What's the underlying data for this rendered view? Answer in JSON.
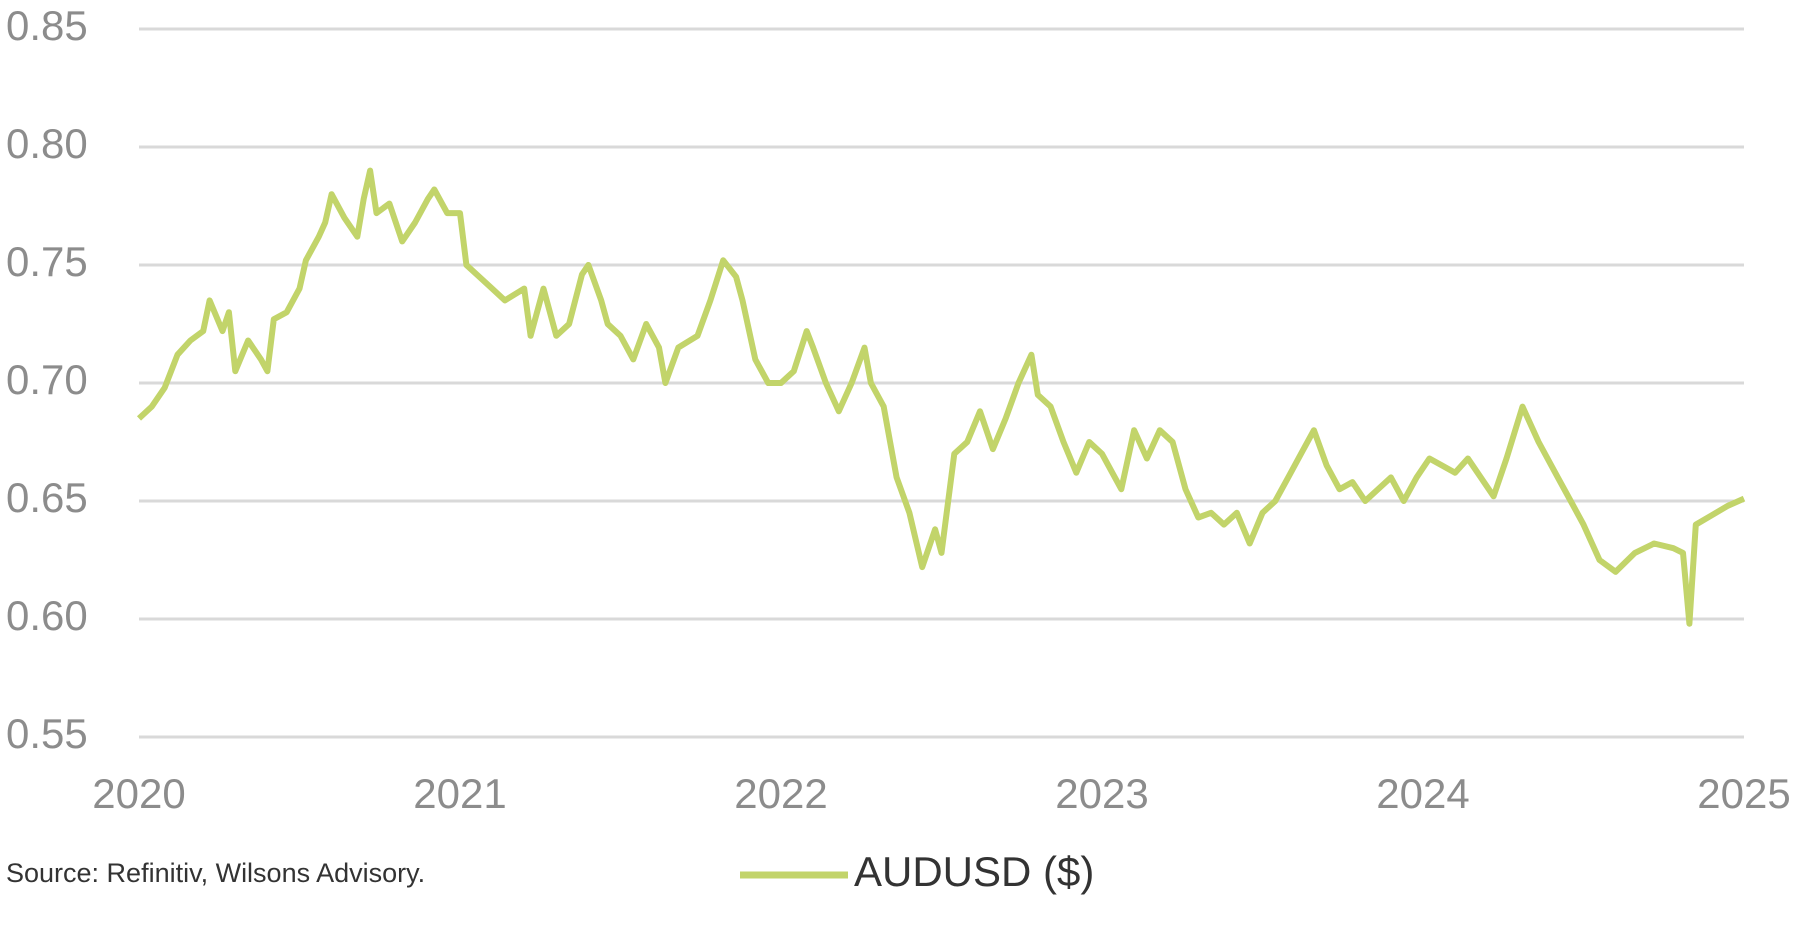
{
  "chart_data": {
    "type": "line",
    "source": "Source: Refinitiv, Wilsons Advisory.",
    "xlim": [
      2020,
      2025
    ],
    "xticks": [
      2020,
      2021,
      2022,
      2023,
      2024,
      2025
    ],
    "ylim": [
      0.55,
      0.85
    ],
    "yticks": [
      0.85,
      {
        "value": 0.8,
        "label": "0.80"
      },
      0.75,
      {
        "value": 0.7,
        "label": "0.70"
      },
      0.65,
      {
        "value": 0.6,
        "label": "0.60"
      },
      0.55
    ],
    "grid": true,
    "x": [
      2020.0,
      2020.04,
      2020.08,
      2020.12,
      2020.16,
      2020.2,
      2020.22,
      2020.26,
      2020.28,
      2020.3,
      2020.34,
      2020.38,
      2020.4,
      2020.42,
      2020.46,
      2020.5,
      2020.52,
      2020.56,
      2020.58,
      2020.6,
      2020.64,
      2020.68,
      2020.7,
      2020.72,
      2020.74,
      2020.78,
      2020.82,
      2020.86,
      2020.9,
      2020.92,
      2020.96,
      2021.0,
      2021.02,
      2021.06,
      2021.1,
      2021.14,
      2021.2,
      2021.22,
      2021.26,
      2021.3,
      2021.34,
      2021.38,
      2021.4,
      2021.44,
      2021.46,
      2021.5,
      2021.54,
      2021.58,
      2021.62,
      2021.64,
      2021.68,
      2021.74,
      2021.78,
      2021.82,
      2021.86,
      2021.88,
      2021.92,
      2021.96,
      2022.0,
      2022.04,
      2022.08,
      2022.1,
      2022.14,
      2022.18,
      2022.22,
      2022.26,
      2022.28,
      2022.32,
      2022.34,
      2022.36,
      2022.4,
      2022.44,
      2022.48,
      2022.5,
      2022.54,
      2022.58,
      2022.62,
      2022.66,
      2022.7,
      2022.74,
      2022.78,
      2022.8,
      2022.84,
      2022.88,
      2022.92,
      2022.96,
      2023.0,
      2023.02,
      2023.06,
      2023.1,
      2023.14,
      2023.18,
      2023.22,
      2023.26,
      2023.3,
      2023.34,
      2023.38,
      2023.42,
      2023.46,
      2023.5,
      2023.54,
      2023.58,
      2023.62,
      2023.66,
      2023.7,
      2023.74,
      2023.78,
      2023.82,
      2023.86,
      2023.9,
      2023.94,
      2023.98,
      2024.02,
      2024.06,
      2024.1,
      2024.14,
      2024.18,
      2024.22,
      2024.26,
      2024.31,
      2024.36,
      2024.42,
      2024.46,
      2024.5,
      2024.55,
      2024.6,
      2024.66,
      2024.72,
      2024.78,
      2024.81,
      2024.83,
      2024.85,
      2024.9,
      2024.95,
      2025.0
    ],
    "series": [
      {
        "name": "AUDUSD ($)",
        "color": "#c2d46a",
        "values": [
          0.685,
          0.69,
          0.698,
          0.712,
          0.718,
          0.722,
          0.735,
          0.722,
          0.73,
          0.705,
          0.718,
          0.71,
          0.705,
          0.727,
          0.73,
          0.74,
          0.752,
          0.762,
          0.768,
          0.78,
          0.77,
          0.762,
          0.778,
          0.79,
          0.772,
          0.776,
          0.76,
          0.768,
          0.778,
          0.782,
          0.772,
          0.772,
          0.75,
          0.745,
          0.74,
          0.735,
          0.74,
          0.72,
          0.74,
          0.72,
          0.725,
          0.746,
          0.75,
          0.735,
          0.725,
          0.72,
          0.71,
          0.725,
          0.715,
          0.7,
          0.715,
          0.72,
          0.735,
          0.752,
          0.745,
          0.735,
          0.71,
          0.7,
          0.7,
          0.705,
          0.722,
          0.715,
          0.7,
          0.688,
          0.7,
          0.715,
          0.7,
          0.69,
          0.675,
          0.66,
          0.645,
          0.622,
          0.638,
          0.628,
          0.67,
          0.675,
          0.688,
          0.672,
          0.685,
          0.7,
          0.712,
          0.695,
          0.69,
          0.675,
          0.662,
          0.675,
          0.67,
          0.665,
          0.655,
          0.68,
          0.668,
          0.68,
          0.675,
          0.655,
          0.643,
          0.645,
          0.64,
          0.645,
          0.632,
          0.645,
          0.65,
          0.66,
          0.67,
          0.68,
          0.665,
          0.655,
          0.658,
          0.65,
          0.655,
          0.66,
          0.65,
          0.66,
          0.668,
          0.665,
          0.662,
          0.668,
          0.66,
          0.652,
          0.668,
          0.69,
          0.675,
          0.66,
          0.65,
          0.64,
          0.625,
          0.62,
          0.628,
          0.632,
          0.63,
          0.628,
          0.598,
          0.64,
          0.644,
          0.648,
          0.651
        ]
      }
    ]
  }
}
